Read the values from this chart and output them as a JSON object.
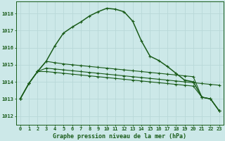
{
  "title": "Graphe pression niveau de la mer (hPa)",
  "bg": "#cce8e8",
  "grid_color": "#b8d8d8",
  "lc": "#1a5c1a",
  "xlim": [
    -0.5,
    23.5
  ],
  "ylim": [
    1011.5,
    1018.7
  ],
  "yticks": [
    1012,
    1013,
    1014,
    1015,
    1016,
    1017,
    1018
  ],
  "xticks": [
    0,
    1,
    2,
    3,
    4,
    5,
    6,
    7,
    8,
    9,
    10,
    11,
    12,
    13,
    14,
    15,
    16,
    17,
    18,
    19,
    20,
    21,
    22,
    23
  ],
  "s1": [
    1013.0,
    1013.9,
    1014.6,
    1015.2,
    1016.1,
    1016.85,
    1017.2,
    1017.5,
    1017.85,
    1018.1,
    1018.3,
    1018.25,
    1018.1,
    1017.55,
    1016.4,
    1015.5,
    1015.25,
    1014.9,
    1014.5,
    1014.1,
    1014.0,
    1013.1,
    1013.0,
    1012.3
  ],
  "s2": [
    1013.0,
    1013.9,
    1014.6,
    1014.8,
    1014.75,
    1014.7,
    1014.65,
    1014.6,
    1014.55,
    1014.5,
    1014.45,
    1014.4,
    1014.35,
    1014.3,
    1014.25,
    1014.2,
    1014.15,
    1014.1,
    1014.05,
    1014.0,
    1013.95,
    1013.9,
    1013.85,
    1013.8
  ],
  "s3": [
    1013.0,
    1013.9,
    1014.6,
    1014.6,
    1014.55,
    1014.5,
    1014.45,
    1014.4,
    1014.35,
    1014.3,
    1014.25,
    1014.2,
    1014.15,
    1014.1,
    1014.05,
    1014.0,
    1013.95,
    1013.9,
    1013.85,
    1013.8,
    1013.75,
    1013.1,
    1013.0,
    1012.3
  ],
  "s4": [
    1013.0,
    1013.9,
    1014.6,
    1015.2,
    1015.12,
    1015.05,
    1015.0,
    1014.95,
    1014.9,
    1014.85,
    1014.8,
    1014.75,
    1014.7,
    1014.65,
    1014.6,
    1014.55,
    1014.5,
    1014.45,
    1014.4,
    1014.35,
    1014.3,
    1013.1,
    1013.0,
    1012.3
  ]
}
